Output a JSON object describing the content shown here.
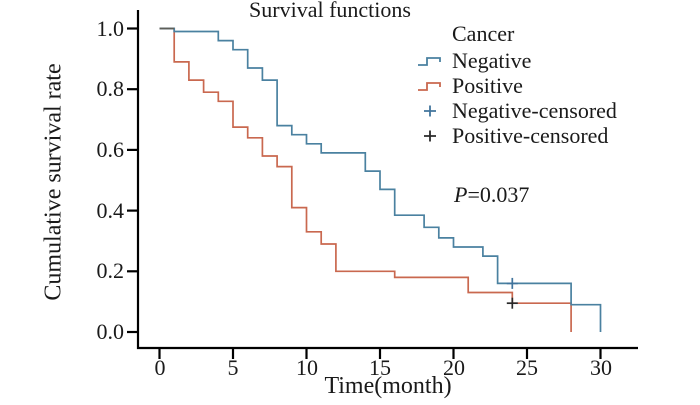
{
  "figure": {
    "title": "Survival functions",
    "p_label": "P",
    "p_rest": "=0.037"
  },
  "chart_data": {
    "type": "line",
    "subtype": "kaplan-meier-step",
    "title": "Survival functions",
    "xlabel": "Time(month)",
    "ylabel": "Cumulative survival rate",
    "p_value": "P=0.037",
    "grid": false,
    "x_axis": {
      "tick_labels": [
        "0",
        "5",
        "10",
        "15",
        "20",
        "25",
        "30"
      ],
      "tick_values": [
        0,
        5,
        10,
        15,
        20,
        25,
        30
      ],
      "lim": [
        -1.5,
        32.5
      ]
    },
    "y_axis": {
      "tick_labels": [
        "1.0",
        "0.8",
        "0.6",
        "0.4",
        "0.2",
        "0.0"
      ],
      "tick_values": [
        1.0,
        0.8,
        0.6,
        0.4,
        0.2,
        0.0
      ],
      "lim": [
        0,
        1.05
      ]
    },
    "legend": {
      "title": "Cancer",
      "position": "upper-right",
      "items": [
        {
          "label": "Negative",
          "symbol": "step",
          "color": "#4a81a0"
        },
        {
          "label": "Positive",
          "symbol": "step",
          "color": "#c9684f"
        },
        {
          "label": "Negative-censored",
          "symbol": "plus",
          "color": "#41749c"
        },
        {
          "label": "Positive-censored",
          "symbol": "plus",
          "color": "#2a2a2a"
        }
      ]
    },
    "series": [
      {
        "name": "Negative",
        "color": "#4a81a0",
        "censor_color": "#41749c",
        "steps": [
          [
            0,
            1.0
          ],
          [
            1,
            0.99
          ],
          [
            4,
            0.96
          ],
          [
            5,
            0.93
          ],
          [
            6,
            0.87
          ],
          [
            7,
            0.83
          ],
          [
            8,
            0.68
          ],
          [
            9,
            0.65
          ],
          [
            10,
            0.62
          ],
          [
            11,
            0.59
          ],
          [
            14,
            0.53
          ],
          [
            15,
            0.47
          ],
          [
            16,
            0.385
          ],
          [
            18,
            0.345
          ],
          [
            19,
            0.31
          ],
          [
            20,
            0.28
          ],
          [
            22,
            0.25
          ],
          [
            23,
            0.16
          ],
          [
            28,
            0.09
          ],
          [
            30,
            0.0
          ]
        ],
        "censored": [
          [
            24,
            0.16
          ]
        ]
      },
      {
        "name": "Positive",
        "color": "#c9684f",
        "censor_color": "#2a2a2a",
        "steps": [
          [
            0,
            1.0
          ],
          [
            1,
            0.89
          ],
          [
            2,
            0.83
          ],
          [
            3,
            0.79
          ],
          [
            4,
            0.76
          ],
          [
            5,
            0.675
          ],
          [
            6,
            0.64
          ],
          [
            7,
            0.58
          ],
          [
            8,
            0.545
          ],
          [
            9,
            0.41
          ],
          [
            10,
            0.33
          ],
          [
            11,
            0.29
          ],
          [
            12,
            0.2
          ],
          [
            16,
            0.18
          ],
          [
            21,
            0.13
          ],
          [
            24,
            0.095
          ],
          [
            28,
            0.0
          ]
        ],
        "censored": [
          [
            24,
            0.095
          ]
        ]
      }
    ]
  }
}
